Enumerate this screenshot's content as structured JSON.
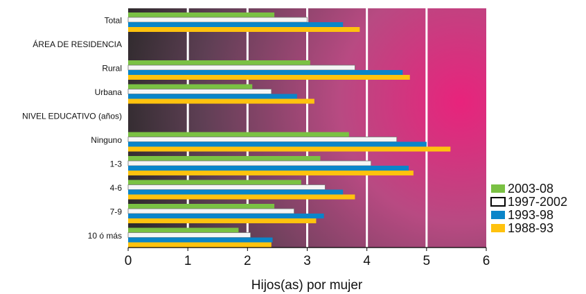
{
  "chart_data": {
    "type": "bar",
    "orientation": "horizontal",
    "xlabel": "Hijos(as) por mujer",
    "xlim": [
      0,
      6
    ],
    "x_ticks": [
      "0",
      "1",
      "2",
      "3",
      "4",
      "5",
      "6"
    ],
    "grid": true,
    "legend_position": "right",
    "categories": [
      "Total",
      "ÁREA DE RESIDENCIA",
      "Rural",
      "Urbana",
      "NIVEL EDUCATIVO (años)",
      "Ninguno",
      "1-3",
      "4-6",
      "7-9",
      "10 ó más"
    ],
    "series": [
      {
        "name": "2003-08",
        "color": "#7ac143",
        "values": [
          2.45,
          null,
          3.05,
          2.08,
          null,
          3.7,
          3.22,
          2.9,
          2.45,
          1.85
        ]
      },
      {
        "name": "1997-2002",
        "color": "#f5f5f5",
        "values": [
          3.0,
          null,
          3.8,
          2.4,
          null,
          4.5,
          4.07,
          3.3,
          2.78,
          2.05
        ]
      },
      {
        "name": "1993-98",
        "color": "#0a85c9",
        "values": [
          3.6,
          null,
          4.6,
          2.83,
          null,
          5.0,
          4.7,
          3.6,
          3.28,
          2.42
        ]
      },
      {
        "name": "1988-93",
        "color": "#ffc20e",
        "values": [
          3.88,
          null,
          4.72,
          3.12,
          null,
          5.4,
          4.78,
          3.8,
          3.15,
          2.4
        ]
      }
    ]
  }
}
